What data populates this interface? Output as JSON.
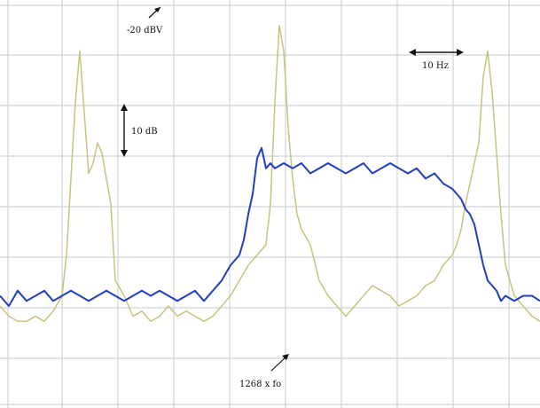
{
  "chart_data": {
    "type": "line",
    "title": "",
    "xlabel": "",
    "ylabel": "",
    "grid": true,
    "legend": "none",
    "annotations": {
      "reference_level": "-20 dBV",
      "vertical_scale": "10 dB",
      "horizontal_scale": "10 Hz",
      "center_marker": "1268 x fo"
    },
    "series": [
      {
        "color": "#1f3fbf",
        "note": "blue trace",
        "x": [
          0,
          10,
          20,
          30,
          40,
          50,
          60,
          70,
          80,
          90,
          100,
          110,
          120,
          130,
          140,
          150,
          160,
          170,
          180,
          190,
          200,
          210,
          220,
          230,
          240,
          250,
          260,
          270,
          275,
          280,
          285,
          290,
          295,
          300,
          305,
          310,
          320,
          330,
          340,
          350,
          360,
          370,
          380,
          390,
          400,
          410,
          420,
          430,
          440,
          450,
          460,
          470,
          480,
          490,
          500,
          510,
          515,
          520,
          525,
          530,
          535,
          540,
          545,
          550,
          555,
          560,
          565,
          570,
          580,
          590,
          600,
          609
        ],
        "y": [
          -58,
          -60,
          -57,
          -59,
          -58,
          -57,
          -59,
          -58,
          -57,
          -58,
          -59,
          -58,
          -57,
          -58,
          -59,
          -58,
          -57,
          -58,
          -57,
          -58,
          -59,
          -58,
          -57,
          -59,
          -57,
          -55,
          -52,
          -50,
          -47,
          -42,
          -38,
          -31,
          -29,
          -33,
          -32,
          -33,
          -32,
          -33,
          -32,
          -34,
          -33,
          -32,
          -33,
          -34,
          -33,
          -32,
          -34,
          -33,
          -32,
          -33,
          -34,
          -33,
          -35,
          -34,
          -36,
          -37,
          -38,
          -39,
          -41,
          -42,
          -44,
          -48,
          -52,
          -55,
          -56,
          -57,
          -59,
          -58,
          -59,
          -58,
          -58,
          -59
        ]
      },
      {
        "color": "#c9c27e",
        "note": "pale yellow trace",
        "x": [
          0,
          10,
          20,
          30,
          40,
          50,
          60,
          70,
          75,
          80,
          85,
          90,
          95,
          100,
          105,
          110,
          115,
          120,
          125,
          130,
          140,
          150,
          160,
          170,
          180,
          190,
          200,
          210,
          220,
          230,
          240,
          250,
          260,
          270,
          280,
          290,
          300,
          305,
          310,
          315,
          320,
          325,
          330,
          335,
          340,
          350,
          360,
          370,
          380,
          390,
          400,
          410,
          420,
          430,
          440,
          450,
          460,
          470,
          480,
          490,
          500,
          510,
          515,
          520,
          525,
          530,
          535,
          540,
          545,
          550,
          555,
          560,
          565,
          570,
          580,
          590,
          600,
          609
        ],
        "y": [
          -60,
          -62,
          -63,
          -63,
          -62,
          -63,
          -61,
          -58,
          -50,
          -35,
          -20,
          -10,
          -22,
          -34,
          -32,
          -28,
          -30,
          -35,
          -40,
          -55,
          -58,
          -62,
          -61,
          -63,
          -62,
          -60,
          -62,
          -61,
          -62,
          -63,
          -62,
          -60,
          -58,
          -55,
          -52,
          -50,
          -48,
          -40,
          -20,
          -5,
          -10,
          -25,
          -35,
          -42,
          -45,
          -48,
          -55,
          -58,
          -60,
          -62,
          -60,
          -58,
          -56,
          -57,
          -58,
          -60,
          -59,
          -58,
          -56,
          -55,
          -52,
          -50,
          -48,
          -45,
          -40,
          -36,
          -32,
          -28,
          -15,
          -10,
          -18,
          -30,
          -42,
          -52,
          -58,
          -60,
          -62,
          -63
        ]
      }
    ]
  }
}
